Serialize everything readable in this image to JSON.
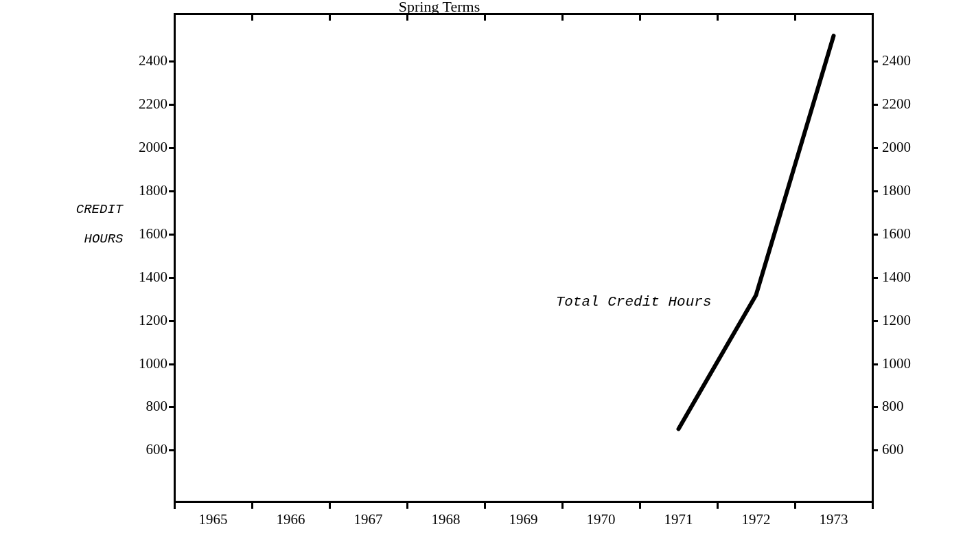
{
  "chart_data": {
    "type": "line",
    "title": "Spring Terms",
    "ylabel": "CREDIT HOURS",
    "categories": [
      "1965",
      "1966",
      "1967",
      "1968",
      "1969",
      "1970",
      "1971",
      "1972",
      "1973"
    ],
    "series": [
      {
        "name": "Total Credit Hours",
        "color": "#000000",
        "values": [
          null,
          null,
          null,
          null,
          null,
          null,
          700,
          1320,
          2520
        ]
      }
    ],
    "ylim": [
      330,
      2590
    ],
    "yticks": [
      600,
      800,
      1000,
      1200,
      1400,
      1600,
      1800,
      2000,
      2200,
      2400
    ],
    "y2lim": [
      330,
      2590
    ],
    "y2ticks": [
      600,
      800,
      1000,
      1200,
      1400,
      1600,
      1800,
      2000,
      2200,
      2400
    ],
    "grid": false,
    "legend": false,
    "marker": "none",
    "line_style": "solid"
  }
}
